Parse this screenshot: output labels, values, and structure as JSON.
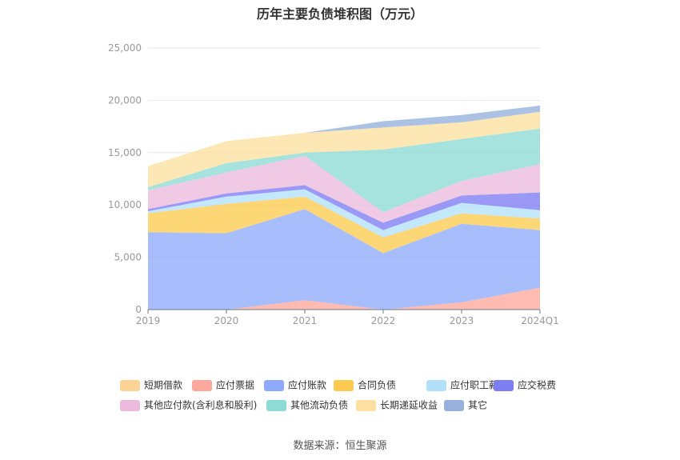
{
  "chart_data": {
    "type": "area",
    "stacked": true,
    "title": "历年主要负债堆积图（万元）",
    "categories": [
      "2019",
      "2020",
      "2021",
      "2022",
      "2023",
      "2024Q1"
    ],
    "ylim": [
      0,
      25000
    ],
    "y_ticks": [
      "0",
      "5,000",
      "10,000",
      "15,000",
      "20,000",
      "25,000"
    ],
    "grid": true,
    "legend_position": "bottom",
    "series": [
      {
        "name": "短期借款",
        "color": "#fdd396",
        "values": [
          0,
          0,
          0,
          0,
          0,
          0
        ]
      },
      {
        "name": "应付票据",
        "color": "#fca89c",
        "values": [
          0,
          0,
          900,
          0,
          700,
          2100
        ]
      },
      {
        "name": "应付账款",
        "color": "#8faafa",
        "values": [
          7400,
          7300,
          8700,
          5400,
          7500,
          5500
        ]
      },
      {
        "name": "合同负债",
        "color": "#fdca50",
        "values": [
          1800,
          2800,
          1200,
          1500,
          1000,
          1100
        ]
      },
      {
        "name": "应付职工薪酬",
        "color": "#b2e0fa",
        "values": [
          200,
          700,
          700,
          700,
          1000,
          800
        ]
      },
      {
        "name": "应交税费",
        "color": "#7e7ef3",
        "values": [
          200,
          300,
          400,
          700,
          700,
          1700
        ]
      },
      {
        "name": "其他应付款(含利息和股利)",
        "color": "#ecbadc",
        "values": [
          1800,
          2000,
          2800,
          1000,
          1400,
          2700
        ]
      },
      {
        "name": "其他流动负债",
        "color": "#8ddbd5",
        "values": [
          300,
          900,
          300,
          6000,
          4000,
          3400
        ]
      },
      {
        "name": "长期递延收益",
        "color": "#fde0a0",
        "values": [
          2000,
          2100,
          1900,
          2100,
          1600,
          1600
        ]
      },
      {
        "name": "其它",
        "color": "#95b1dc",
        "values": [
          0,
          0,
          0,
          600,
          700,
          600
        ]
      }
    ]
  },
  "source_note": "数据来源：恒生聚源"
}
